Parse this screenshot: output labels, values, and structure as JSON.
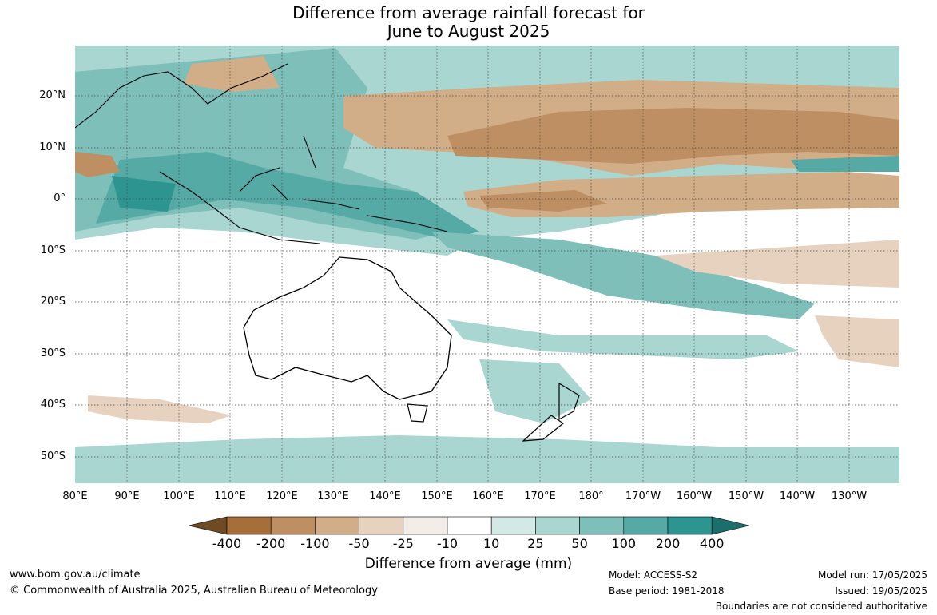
{
  "title_line1": "Difference from average rainfall forecast for",
  "title_line2": "June to August 2025",
  "lat_labels": [
    "20°N",
    "10°N",
    "0°",
    "10°S",
    "20°S",
    "30°S",
    "40°S",
    "50°S"
  ],
  "lon_labels": [
    "80°E",
    "90°E",
    "100°E",
    "110°E",
    "120°E",
    "130°E",
    "140°E",
    "150°E",
    "160°E",
    "170°E",
    "180°",
    "170°W",
    "160°W",
    "150°W",
    "140°W",
    "130°W"
  ],
  "colorbar": {
    "ticks": [
      "-400",
      "-200",
      "-100",
      "-50",
      "-25",
      "-10",
      "10",
      "25",
      "50",
      "100",
      "200",
      "400"
    ],
    "colors": [
      "#6e4a25",
      "#a66e38",
      "#bf8f64",
      "#d1ad88",
      "#e6d2bf",
      "#f2ede6",
      "#ffffff",
      "#d2e9e6",
      "#a9d6d1",
      "#7fbfba",
      "#55aaa6",
      "#2e948f",
      "#1c6e6b"
    ],
    "label": "Difference from average (mm)"
  },
  "footer": {
    "url": "www.bom.gov.au/climate",
    "copyright": "© Commonwealth of Australia 2025, Australian Bureau of Meteorology",
    "model": "Model: ACCESS-S2",
    "base_period": "Base period: 1981-2018",
    "model_run": "Model run: 17/05/2025",
    "issued": "Issued: 19/05/2025",
    "disclaimer": "Boundaries are not considered authoritative"
  }
}
